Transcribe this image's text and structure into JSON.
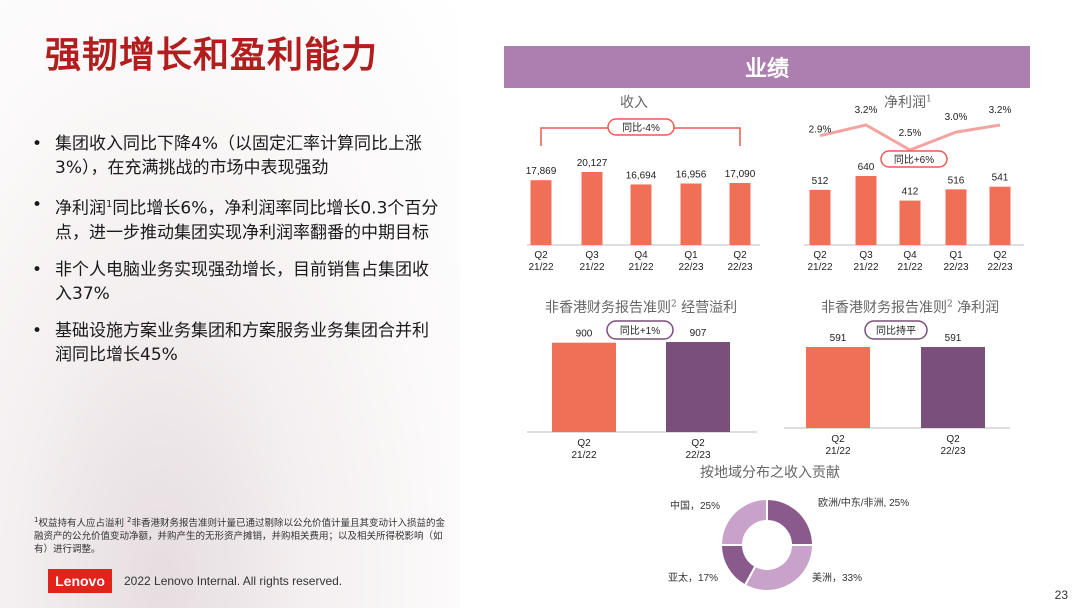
{
  "title": "强韧增长和盈利能力",
  "bullets": [
    {
      "parts": [
        "集团收入同比下降4%（以固定汇率计算同比上涨3%），在充满挑战的市场中表现强劲"
      ]
    },
    {
      "parts": [
        "净利润",
        "同比增长6%，净利润率同比增长0.3个百分点，进一步推动集团实现净利润率翻番的中期目标"
      ],
      "sup": "1"
    },
    {
      "parts": [
        "非个人电脑业务实现强劲增长，目前销售占集团收入37%"
      ]
    },
    {
      "parts": [
        "基础设施方案业务集团和方案服务业务集团合并利润同比增长45%"
      ]
    }
  ],
  "footnote": {
    "sup1": "1",
    "text1": "权益持有人应占溢利 ",
    "sup2": "2",
    "text2": "非香港财务报告准则计量已通过剔除以公允价值计量且其变动计入损益的金融资产的公允价值变动净额，并购产生的无形资产摊销，并购相关费用；以及相关所得税影响（如有）进行调整。"
  },
  "logo": "Lenovo",
  "copyright": "2022 Lenovo Internal. All rights reserved.",
  "page_number": "23",
  "header": "业绩",
  "colors": {
    "orange": "#f07057",
    "purple": "#7a4f7c",
    "title_red": "#b31d1d",
    "header_purple": "#ad7fb0",
    "bracket_red": "#e85d50",
    "pie_dark": "#8a5a8c",
    "pie_light": "#c9a2c9"
  },
  "panels": {
    "revenue": {
      "title": "收入"
    },
    "net_income": {
      "title": "净利润",
      "title_sup": "1"
    },
    "non_hkfrs_op": {
      "title": "非香港财务报告准则",
      "title_sup": "2",
      "title_suffix": " 经营溢利"
    },
    "non_hkfrs_net": {
      "title": "非香港财务报告准则",
      "title_sup": "2",
      "title_suffix": " 净利润"
    },
    "geo": {
      "title": "按地域分布之收入贡献"
    }
  },
  "chart_data": [
    {
      "type": "bar",
      "title": "收入",
      "categories": [
        "Q2\n21/22",
        "Q3\n21/22",
        "Q4\n21/22",
        "Q1\n22/23",
        "Q2\n22/23"
      ],
      "values": [
        17869,
        20127,
        16694,
        16956,
        17090
      ],
      "data_labels": [
        "17,869",
        "20,127",
        "16,694",
        "16,956",
        "17,090"
      ],
      "annotation": "同比-4%"
    },
    {
      "type": "bar",
      "title": "净利润",
      "categories": [
        "Q2\n21/22",
        "Q3\n21/22",
        "Q4\n21/22",
        "Q1\n22/23",
        "Q2\n22/23"
      ],
      "values": [
        512,
        640,
        412,
        516,
        541
      ],
      "data_labels": [
        "512",
        "640",
        "412",
        "516",
        "541"
      ],
      "margin_labels": [
        "2.9%",
        "3.2%",
        "2.5%",
        "3.0%",
        "3.2%"
      ],
      "margins": [
        2.9,
        3.2,
        2.5,
        3.0,
        3.2
      ],
      "annotation": "同比+6%"
    },
    {
      "type": "bar",
      "title": "非香港财务报告准则 经营溢利",
      "categories": [
        "Q2\n21/22",
        "Q2\n22/23"
      ],
      "values": [
        900,
        907
      ],
      "data_labels": [
        "900",
        "907"
      ],
      "annotation": "同比+1%"
    },
    {
      "type": "bar",
      "title": "非香港财务报告准则 净利润",
      "categories": [
        "Q2\n21/22",
        "Q2\n22/23"
      ],
      "values": [
        591,
        591
      ],
      "data_labels": [
        "591",
        "591"
      ],
      "annotation": "同比持平"
    },
    {
      "type": "pie",
      "title": "按地域分布之收入贡献",
      "labels": [
        "欧洲/中东/非洲, 25%",
        "美洲，33%",
        "亚太，17%",
        "中国，25%"
      ],
      "values": [
        25,
        33,
        17,
        25
      ]
    }
  ]
}
